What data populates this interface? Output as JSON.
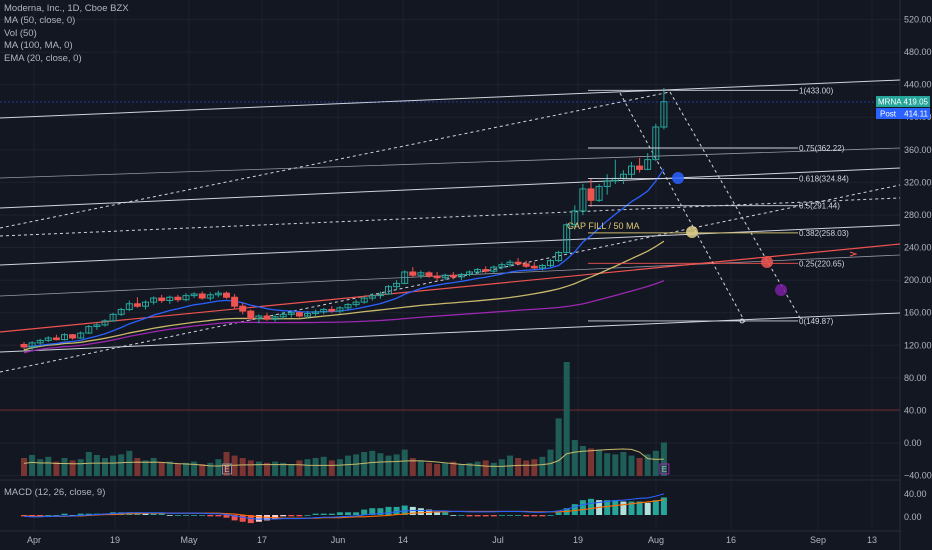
{
  "legend": {
    "title": "Moderna, Inc., 1D, Cboe BZX",
    "ma50": "MA (50, close, 0)",
    "vol": "Vol (50)",
    "ma100": "MA (100, MA, 0)",
    "ema20": "EMA (20, close, 0)"
  },
  "macd_legend": "MACD (12, 26, close, 9)",
  "colors": {
    "background": "#131722",
    "up": "#26a69a",
    "down": "#ef5350",
    "ma50": "#c8b86b",
    "ma100": "#9c27b0",
    "ema20": "#2962ff",
    "fib": "#d1d4dc",
    "fib_025": "#ef5350",
    "fib_0382": "#c8b86b",
    "macd_line": "#2962ff",
    "signal_line": "#ff6d00"
  },
  "chart_data": {
    "type": "candlestick",
    "symbol": "MRNA",
    "price_axis_ticks": [
      520,
      480,
      440,
      400,
      360,
      320,
      280,
      240,
      200,
      160,
      120,
      80,
      40,
      0,
      -40
    ],
    "price_axis_labels": [
      "520.00",
      "480.00",
      "440.00",
      "400.00",
      "360.00",
      "320.00",
      "280.00",
      "240.00",
      "200.00",
      "160.00",
      "120.00",
      "80.00",
      "40.00",
      "0.00",
      "−40.00"
    ],
    "macd_axis_labels": [
      "40.00",
      "0.00"
    ],
    "x_axis_labels": [
      "Apr",
      "19",
      "May",
      "17",
      "Jun",
      "14",
      "Jul",
      "19",
      "Aug",
      "16",
      "Sep",
      "13"
    ],
    "last_price": {
      "label": "MRNA",
      "value": "419.05"
    },
    "post_price": {
      "label": "Post",
      "value": "414.11"
    },
    "fib_levels": [
      {
        "level": 1,
        "text": "1(433.00)",
        "price": 433.0
      },
      {
        "level": 0.75,
        "text": "0.75(362.22)",
        "price": 362.22
      },
      {
        "level": 0.618,
        "text": "0.618(324.84)",
        "price": 324.84
      },
      {
        "level": 0.5,
        "text": "0.5(291.44)",
        "price": 291.44
      },
      {
        "level": 0.382,
        "text": "0.382(258.03)",
        "price": 258.03
      },
      {
        "level": 0.25,
        "text": "0.25(220.65)",
        "price": 220.65
      },
      {
        "level": 0,
        "text": "0(149.87)",
        "price": 149.87
      }
    ],
    "annotation": "GAP FILL / 50 MA",
    "candles": [
      [
        0,
        121,
        124,
        115,
        118
      ],
      [
        1,
        118,
        125,
        114,
        123
      ],
      [
        2,
        123,
        128,
        120,
        126
      ],
      [
        3,
        126,
        131,
        124,
        129
      ],
      [
        4,
        129,
        133,
        126,
        127
      ],
      [
        5,
        127,
        135,
        126,
        133
      ],
      [
        6,
        133,
        134,
        127,
        129
      ],
      [
        7,
        129,
        137,
        128,
        135
      ],
      [
        8,
        135,
        145,
        134,
        143
      ],
      [
        9,
        143,
        148,
        139,
        145
      ],
      [
        10,
        145,
        152,
        143,
        150
      ],
      [
        11,
        150,
        160,
        149,
        158
      ],
      [
        12,
        158,
        166,
        156,
        164
      ],
      [
        13,
        164,
        175,
        162,
        171
      ],
      [
        14,
        171,
        179,
        166,
        168
      ],
      [
        15,
        168,
        175,
        164,
        173
      ],
      [
        16,
        173,
        180,
        170,
        178
      ],
      [
        17,
        178,
        182,
        172,
        175
      ],
      [
        18,
        175,
        181,
        171,
        179
      ],
      [
        19,
        179,
        182,
        173,
        176
      ],
      [
        20,
        176,
        184,
        174,
        181
      ],
      [
        21,
        181,
        185,
        178,
        183
      ],
      [
        22,
        183,
        186,
        176,
        178
      ],
      [
        23,
        178,
        185,
        175,
        182
      ],
      [
        24,
        182,
        187,
        179,
        184
      ],
      [
        25,
        184,
        186,
        177,
        179
      ],
      [
        26,
        179,
        183,
        165,
        168
      ],
      [
        27,
        168,
        172,
        158,
        162
      ],
      [
        28,
        162,
        164,
        150,
        153
      ],
      [
        29,
        153,
        158,
        147,
        156
      ],
      [
        30,
        156,
        160,
        150,
        152
      ],
      [
        31,
        152,
        158,
        149,
        155
      ],
      [
        32,
        155,
        161,
        152,
        158
      ],
      [
        33,
        158,
        163,
        154,
        160
      ],
      [
        34,
        160,
        162,
        154,
        156
      ],
      [
        35,
        156,
        162,
        153,
        159
      ],
      [
        36,
        159,
        164,
        156,
        161
      ],
      [
        37,
        161,
        166,
        158,
        164
      ],
      [
        38,
        164,
        168,
        160,
        162
      ],
      [
        39,
        162,
        168,
        159,
        166
      ],
      [
        40,
        166,
        172,
        163,
        170
      ],
      [
        41,
        170,
        176,
        167,
        173
      ],
      [
        42,
        173,
        180,
        171,
        178
      ],
      [
        43,
        178,
        184,
        175,
        181
      ],
      [
        44,
        181,
        186,
        177,
        183
      ],
      [
        45,
        183,
        194,
        182,
        192
      ],
      [
        46,
        192,
        200,
        188,
        196
      ],
      [
        47,
        196,
        212,
        195,
        210
      ],
      [
        48,
        210,
        216,
        204,
        206
      ],
      [
        49,
        206,
        212,
        202,
        209
      ],
      [
        50,
        209,
        211,
        203,
        205
      ],
      [
        51,
        205,
        210,
        199,
        203
      ],
      [
        52,
        203,
        208,
        200,
        206
      ],
      [
        53,
        206,
        210,
        201,
        204
      ],
      [
        54,
        204,
        209,
        200,
        207
      ],
      [
        55,
        207,
        212,
        205,
        210
      ],
      [
        56,
        210,
        215,
        207,
        213
      ],
      [
        57,
        213,
        217,
        209,
        211
      ],
      [
        58,
        211,
        218,
        208,
        216
      ],
      [
        59,
        216,
        222,
        213,
        219
      ],
      [
        60,
        219,
        225,
        216,
        222
      ],
      [
        61,
        222,
        227,
        218,
        220
      ],
      [
        62,
        220,
        224,
        215,
        217
      ],
      [
        63,
        217,
        222,
        213,
        215
      ],
      [
        64,
        215,
        220,
        212,
        218
      ],
      [
        65,
        218,
        226,
        216,
        224
      ],
      [
        66,
        224,
        236,
        222,
        234
      ],
      [
        67,
        234,
        270,
        233,
        268
      ],
      [
        68,
        268,
        292,
        262,
        285
      ],
      [
        69,
        285,
        318,
        280,
        312
      ],
      [
        70,
        312,
        325,
        290,
        298
      ],
      [
        71,
        298,
        318,
        296,
        315
      ],
      [
        72,
        315,
        330,
        305,
        322
      ],
      [
        73,
        322,
        348,
        318,
        325
      ],
      [
        74,
        325,
        335,
        318,
        330
      ],
      [
        75,
        330,
        345,
        325,
        340
      ],
      [
        76,
        340,
        350,
        332,
        336
      ],
      [
        77,
        336,
        356,
        335,
        348
      ],
      [
        78,
        348,
        392,
        346,
        388
      ],
      [
        79,
        388,
        436,
        385,
        419
      ]
    ],
    "volume": [
      30,
      35,
      28,
      32,
      24,
      30,
      26,
      28,
      40,
      35,
      30,
      34,
      36,
      42,
      30,
      26,
      30,
      22,
      24,
      20,
      22,
      24,
      20,
      22,
      28,
      40,
      34,
      30,
      26,
      24,
      22,
      24,
      22,
      20,
      26,
      28,
      30,
      32,
      26,
      28,
      34,
      36,
      40,
      42,
      38,
      34,
      36,
      44,
      30,
      26,
      22,
      20,
      22,
      24,
      20,
      22,
      24,
      26,
      22,
      28,
      34,
      30,
      26,
      28,
      32,
      44,
      96,
      190,
      60,
      50,
      46,
      44,
      38,
      36,
      40,
      34,
      30,
      36,
      42,
      56
    ],
    "volume_e_markers": [
      25,
      79
    ],
    "macd": [
      -3,
      -4,
      -4,
      -3,
      -3,
      -2,
      -2,
      -1,
      0,
      1,
      2,
      3,
      4,
      5,
      5,
      5,
      5,
      5,
      4,
      4,
      4,
      4,
      4,
      3,
      3,
      1,
      -2,
      -5,
      -8,
      -9,
      -9,
      -9,
      -8,
      -8,
      -8,
      -7,
      -6,
      -5,
      -5,
      -4,
      -3,
      -2,
      0,
      2,
      3,
      5,
      7,
      9,
      10,
      10,
      10,
      9,
      9,
      8,
      8,
      7,
      7,
      7,
      7,
      8,
      8,
      8,
      7,
      6,
      6,
      7,
      9,
      13,
      18,
      23,
      26,
      28,
      30,
      32,
      33,
      35,
      37,
      38,
      42,
      47
    ],
    "macd_signal": [
      -2,
      -3,
      -3,
      -3,
      -3,
      -3,
      -2,
      -2,
      -1,
      0,
      1,
      1,
      2,
      3,
      3,
      4,
      4,
      4,
      4,
      4,
      4,
      4,
      4,
      4,
      4,
      3,
      2,
      0,
      -2,
      -4,
      -5,
      -6,
      -7,
      -7,
      -7,
      -7,
      -7,
      -6,
      -6,
      -6,
      -5,
      -4,
      -4,
      -3,
      -2,
      -1,
      1,
      2,
      4,
      5,
      6,
      7,
      7,
      8,
      8,
      8,
      8,
      8,
      8,
      8,
      8,
      8,
      8,
      7,
      7,
      7,
      7,
      8,
      10,
      12,
      14,
      17,
      19,
      21,
      23,
      25,
      27,
      29,
      31,
      34
    ]
  }
}
